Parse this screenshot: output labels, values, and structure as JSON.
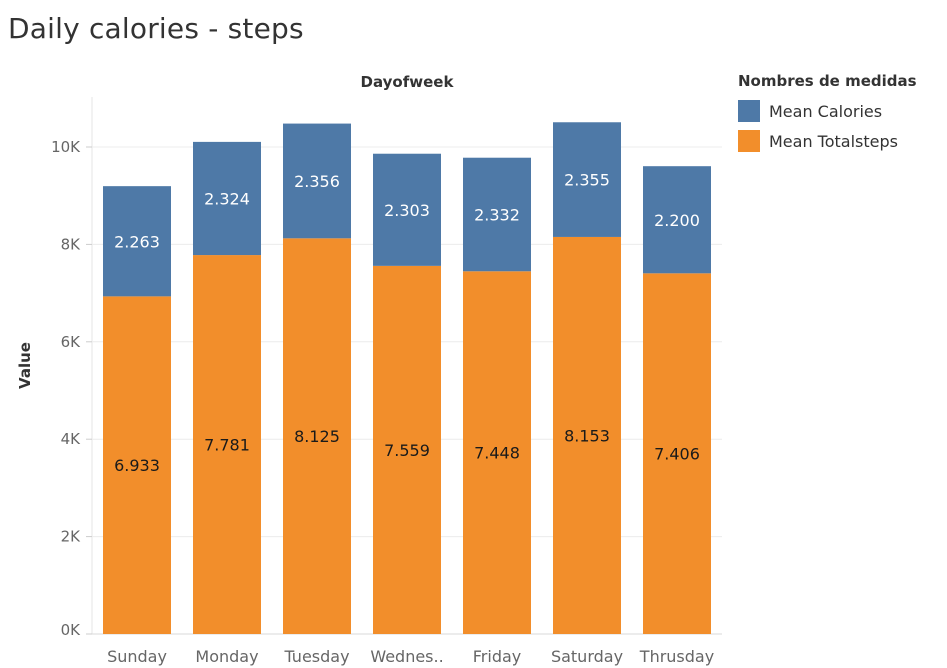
{
  "chart_data": {
    "type": "bar",
    "stacked": true,
    "title": "Daily calories - steps",
    "column_header": "Dayofweek",
    "ylabel": "Value",
    "ylim": [
      0,
      11000
    ],
    "yticks": [
      0,
      2000,
      4000,
      6000,
      8000,
      10000
    ],
    "ytick_labels": [
      "0K",
      "2K",
      "4K",
      "6K",
      "8K",
      "10K"
    ],
    "categories": [
      "Sunday",
      "Monday",
      "Tuesday",
      "Wednes..",
      "Friday",
      "Saturday",
      "Thrusday"
    ],
    "series": [
      {
        "name": "Mean Totalsteps",
        "color": "#f28e2b",
        "label_color": "#1a1a1a",
        "values": [
          6933,
          7781,
          8125,
          7559,
          7448,
          8153,
          7406
        ],
        "labels": [
          "6.933",
          "7.781",
          "8.125",
          "7.559",
          "7.448",
          "8.153",
          "7.406"
        ]
      },
      {
        "name": "Mean Calories",
        "color": "#4e79a7",
        "label_color": "#ffffff",
        "values": [
          2263,
          2324,
          2356,
          2303,
          2332,
          2355,
          2200
        ],
        "labels": [
          "2.263",
          "2.324",
          "2.356",
          "2.303",
          "2.332",
          "2.355",
          "2.200"
        ]
      }
    ],
    "legend": {
      "title": "Nombres de medidas",
      "position": "right",
      "items": [
        {
          "label": "Mean Calories",
          "color": "#4e79a7"
        },
        {
          "label": "Mean Totalsteps",
          "color": "#f28e2b"
        }
      ]
    },
    "grid": true
  }
}
